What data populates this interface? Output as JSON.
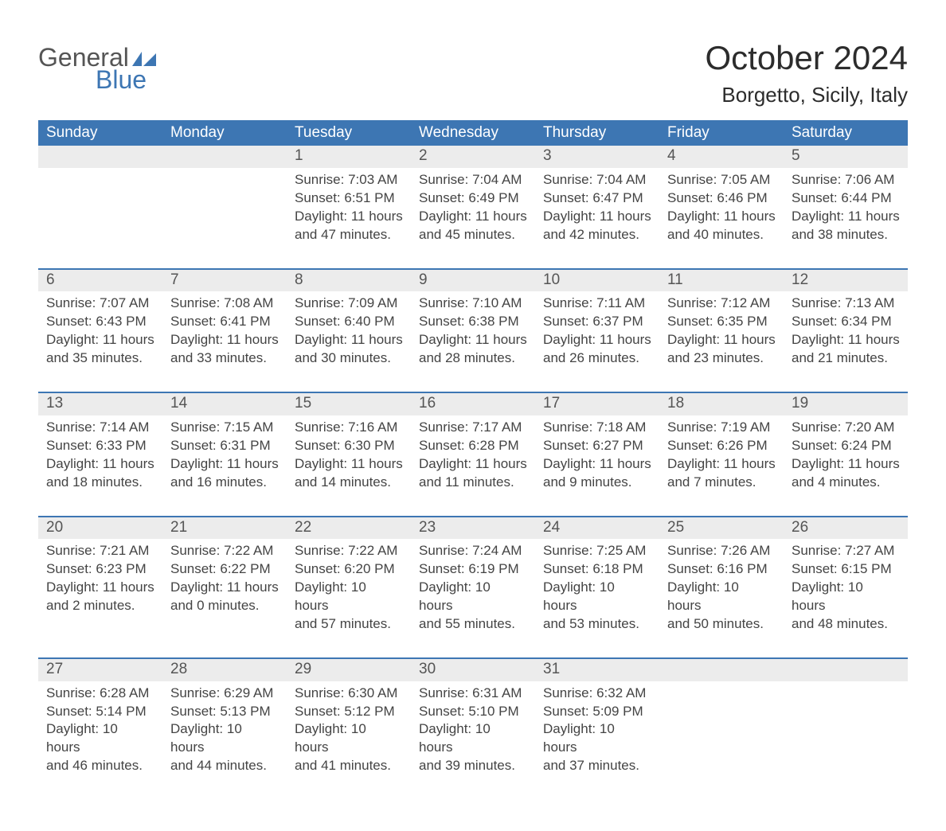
{
  "logo": {
    "word1": "General",
    "word2": "Blue"
  },
  "title": "October 2024",
  "location": "Borgetto, Sicily, Italy",
  "colors": {
    "accent": "#3d76b3",
    "row_header_bg": "#ececec",
    "text": "#3a3a3a"
  },
  "weekdays": [
    "Sunday",
    "Monday",
    "Tuesday",
    "Wednesday",
    "Thursday",
    "Friday",
    "Saturday"
  ],
  "weeks": [
    [
      null,
      null,
      {
        "day": "1",
        "sunrise": "Sunrise: 7:03 AM",
        "sunset": "Sunset: 6:51 PM",
        "daylight1": "Daylight: 11 hours",
        "daylight2": "and 47 minutes."
      },
      {
        "day": "2",
        "sunrise": "Sunrise: 7:04 AM",
        "sunset": "Sunset: 6:49 PM",
        "daylight1": "Daylight: 11 hours",
        "daylight2": "and 45 minutes."
      },
      {
        "day": "3",
        "sunrise": "Sunrise: 7:04 AM",
        "sunset": "Sunset: 6:47 PM",
        "daylight1": "Daylight: 11 hours",
        "daylight2": "and 42 minutes."
      },
      {
        "day": "4",
        "sunrise": "Sunrise: 7:05 AM",
        "sunset": "Sunset: 6:46 PM",
        "daylight1": "Daylight: 11 hours",
        "daylight2": "and 40 minutes."
      },
      {
        "day": "5",
        "sunrise": "Sunrise: 7:06 AM",
        "sunset": "Sunset: 6:44 PM",
        "daylight1": "Daylight: 11 hours",
        "daylight2": "and 38 minutes."
      }
    ],
    [
      {
        "day": "6",
        "sunrise": "Sunrise: 7:07 AM",
        "sunset": "Sunset: 6:43 PM",
        "daylight1": "Daylight: 11 hours",
        "daylight2": "and 35 minutes."
      },
      {
        "day": "7",
        "sunrise": "Sunrise: 7:08 AM",
        "sunset": "Sunset: 6:41 PM",
        "daylight1": "Daylight: 11 hours",
        "daylight2": "and 33 minutes."
      },
      {
        "day": "8",
        "sunrise": "Sunrise: 7:09 AM",
        "sunset": "Sunset: 6:40 PM",
        "daylight1": "Daylight: 11 hours",
        "daylight2": "and 30 minutes."
      },
      {
        "day": "9",
        "sunrise": "Sunrise: 7:10 AM",
        "sunset": "Sunset: 6:38 PM",
        "daylight1": "Daylight: 11 hours",
        "daylight2": "and 28 minutes."
      },
      {
        "day": "10",
        "sunrise": "Sunrise: 7:11 AM",
        "sunset": "Sunset: 6:37 PM",
        "daylight1": "Daylight: 11 hours",
        "daylight2": "and 26 minutes."
      },
      {
        "day": "11",
        "sunrise": "Sunrise: 7:12 AM",
        "sunset": "Sunset: 6:35 PM",
        "daylight1": "Daylight: 11 hours",
        "daylight2": "and 23 minutes."
      },
      {
        "day": "12",
        "sunrise": "Sunrise: 7:13 AM",
        "sunset": "Sunset: 6:34 PM",
        "daylight1": "Daylight: 11 hours",
        "daylight2": "and 21 minutes."
      }
    ],
    [
      {
        "day": "13",
        "sunrise": "Sunrise: 7:14 AM",
        "sunset": "Sunset: 6:33 PM",
        "daylight1": "Daylight: 11 hours",
        "daylight2": "and 18 minutes."
      },
      {
        "day": "14",
        "sunrise": "Sunrise: 7:15 AM",
        "sunset": "Sunset: 6:31 PM",
        "daylight1": "Daylight: 11 hours",
        "daylight2": "and 16 minutes."
      },
      {
        "day": "15",
        "sunrise": "Sunrise: 7:16 AM",
        "sunset": "Sunset: 6:30 PM",
        "daylight1": "Daylight: 11 hours",
        "daylight2": "and 14 minutes."
      },
      {
        "day": "16",
        "sunrise": "Sunrise: 7:17 AM",
        "sunset": "Sunset: 6:28 PM",
        "daylight1": "Daylight: 11 hours",
        "daylight2": "and 11 minutes."
      },
      {
        "day": "17",
        "sunrise": "Sunrise: 7:18 AM",
        "sunset": "Sunset: 6:27 PM",
        "daylight1": "Daylight: 11 hours",
        "daylight2": "and 9 minutes."
      },
      {
        "day": "18",
        "sunrise": "Sunrise: 7:19 AM",
        "sunset": "Sunset: 6:26 PM",
        "daylight1": "Daylight: 11 hours",
        "daylight2": "and 7 minutes."
      },
      {
        "day": "19",
        "sunrise": "Sunrise: 7:20 AM",
        "sunset": "Sunset: 6:24 PM",
        "daylight1": "Daylight: 11 hours",
        "daylight2": "and 4 minutes."
      }
    ],
    [
      {
        "day": "20",
        "sunrise": "Sunrise: 7:21 AM",
        "sunset": "Sunset: 6:23 PM",
        "daylight1": "Daylight: 11 hours",
        "daylight2": "and 2 minutes."
      },
      {
        "day": "21",
        "sunrise": "Sunrise: 7:22 AM",
        "sunset": "Sunset: 6:22 PM",
        "daylight1": "Daylight: 11 hours",
        "daylight2": "and 0 minutes."
      },
      {
        "day": "22",
        "sunrise": "Sunrise: 7:22 AM",
        "sunset": "Sunset: 6:20 PM",
        "daylight1": "Daylight: 10 hours",
        "daylight2": "and 57 minutes."
      },
      {
        "day": "23",
        "sunrise": "Sunrise: 7:24 AM",
        "sunset": "Sunset: 6:19 PM",
        "daylight1": "Daylight: 10 hours",
        "daylight2": "and 55 minutes."
      },
      {
        "day": "24",
        "sunrise": "Sunrise: 7:25 AM",
        "sunset": "Sunset: 6:18 PM",
        "daylight1": "Daylight: 10 hours",
        "daylight2": "and 53 minutes."
      },
      {
        "day": "25",
        "sunrise": "Sunrise: 7:26 AM",
        "sunset": "Sunset: 6:16 PM",
        "daylight1": "Daylight: 10 hours",
        "daylight2": "and 50 minutes."
      },
      {
        "day": "26",
        "sunrise": "Sunrise: 7:27 AM",
        "sunset": "Sunset: 6:15 PM",
        "daylight1": "Daylight: 10 hours",
        "daylight2": "and 48 minutes."
      }
    ],
    [
      {
        "day": "27",
        "sunrise": "Sunrise: 6:28 AM",
        "sunset": "Sunset: 5:14 PM",
        "daylight1": "Daylight: 10 hours",
        "daylight2": "and 46 minutes."
      },
      {
        "day": "28",
        "sunrise": "Sunrise: 6:29 AM",
        "sunset": "Sunset: 5:13 PM",
        "daylight1": "Daylight: 10 hours",
        "daylight2": "and 44 minutes."
      },
      {
        "day": "29",
        "sunrise": "Sunrise: 6:30 AM",
        "sunset": "Sunset: 5:12 PM",
        "daylight1": "Daylight: 10 hours",
        "daylight2": "and 41 minutes."
      },
      {
        "day": "30",
        "sunrise": "Sunrise: 6:31 AM",
        "sunset": "Sunset: 5:10 PM",
        "daylight1": "Daylight: 10 hours",
        "daylight2": "and 39 minutes."
      },
      {
        "day": "31",
        "sunrise": "Sunrise: 6:32 AM",
        "sunset": "Sunset: 5:09 PM",
        "daylight1": "Daylight: 10 hours",
        "daylight2": "and 37 minutes."
      },
      null,
      null
    ]
  ]
}
